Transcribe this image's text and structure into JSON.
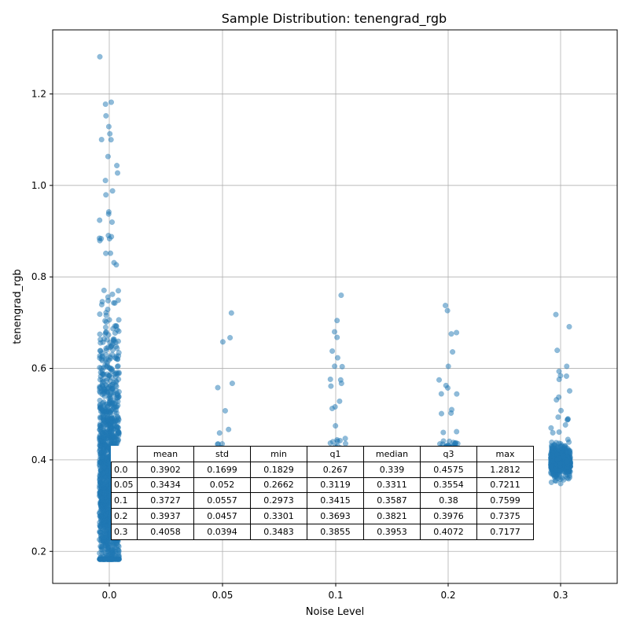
{
  "chart_data": {
    "type": "scatter",
    "title": "Sample Distribution: tenengrad_rgb",
    "xlabel": "Noise Level",
    "ylabel": "tenengrad_rgb",
    "x_ticks": [
      "0.0",
      "0.05",
      "0.1",
      "0.2",
      "0.3"
    ],
    "y_ticks": [
      "0.2",
      "0.4",
      "0.6",
      "0.8",
      "1.0",
      "1.2"
    ],
    "y_tick_values": [
      0.2,
      0.4,
      0.6,
      0.8,
      1.0,
      1.2
    ],
    "ylim": [
      0.13,
      1.34
    ],
    "grid": true,
    "point_color": "#1f77b4",
    "categories": [
      "0.0",
      "0.05",
      "0.1",
      "0.2",
      "0.3"
    ],
    "groups": [
      {
        "noise_level": "0.0",
        "mean": 0.3902,
        "std": 0.1699,
        "min": 0.1829,
        "q1": 0.267,
        "median": 0.339,
        "q3": 0.4575,
        "max": 1.2812
      },
      {
        "noise_level": "0.05",
        "mean": 0.3434,
        "std": 0.052,
        "min": 0.2662,
        "q1": 0.3119,
        "median": 0.3311,
        "q3": 0.3554,
        "max": 0.7211
      },
      {
        "noise_level": "0.1",
        "mean": 0.3727,
        "std": 0.0557,
        "min": 0.2973,
        "q1": 0.3415,
        "median": 0.3587,
        "q3": 0.38,
        "max": 0.7599
      },
      {
        "noise_level": "0.2",
        "mean": 0.3937,
        "std": 0.0457,
        "min": 0.3301,
        "q1": 0.3693,
        "median": 0.3821,
        "q3": 0.3976,
        "max": 0.7375
      },
      {
        "noise_level": "0.3",
        "mean": 0.4058,
        "std": 0.0394,
        "min": 0.3483,
        "q1": 0.3855,
        "median": 0.3953,
        "q3": 0.4072,
        "max": 0.7177
      }
    ],
    "table": {
      "columns": [
        "mean",
        "std",
        "min",
        "q1",
        "median",
        "q3",
        "max"
      ],
      "rows": [
        {
          "label": "0.0",
          "values": [
            "0.3902",
            "0.1699",
            "0.1829",
            "0.267",
            "0.339",
            "0.4575",
            "1.2812"
          ]
        },
        {
          "label": "0.05",
          "values": [
            "0.3434",
            "0.052",
            "0.2662",
            "0.3119",
            "0.3311",
            "0.3554",
            "0.7211"
          ]
        },
        {
          "label": "0.1",
          "values": [
            "0.3727",
            "0.0557",
            "0.2973",
            "0.3415",
            "0.3587",
            "0.38",
            "0.7599"
          ]
        },
        {
          "label": "0.2",
          "values": [
            "0.3937",
            "0.0457",
            "0.3301",
            "0.3693",
            "0.3821",
            "0.3976",
            "0.7375"
          ]
        },
        {
          "label": "0.3",
          "values": [
            "0.4058",
            "0.0394",
            "0.3483",
            "0.3855",
            "0.3953",
            "0.4072",
            "0.7177"
          ]
        }
      ]
    }
  }
}
